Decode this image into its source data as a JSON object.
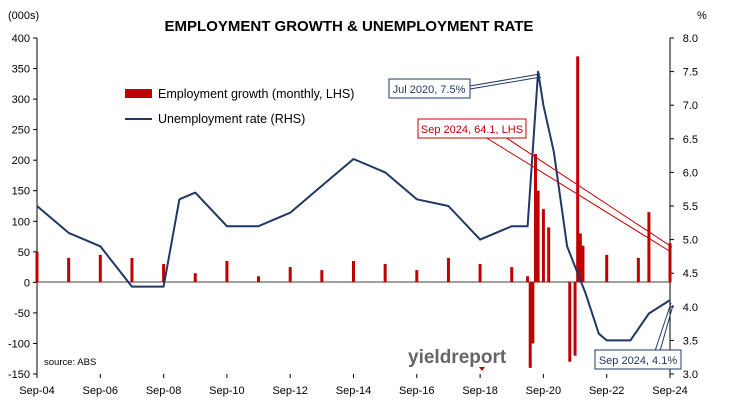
{
  "chart_data": {
    "type": "bar+line",
    "title": "EMPLOYMENT GROWTH & UNEMPLOYMENT RATE",
    "ylabel_left": "(000s)",
    "ylabel_right": "%",
    "ylim_left": [
      -150,
      400
    ],
    "ylim_right": [
      3.0,
      8.0
    ],
    "yticks_left": [
      "400",
      "350",
      "300",
      "250",
      "200",
      "150",
      "100",
      "50",
      "0",
      "-50",
      "-100",
      "-150"
    ],
    "yticks_right": [
      "8.0",
      "7.5",
      "7.0",
      "6.5",
      "6.0",
      "5.5",
      "5.0",
      "4.5",
      "4.0",
      "3.5",
      "3.0"
    ],
    "xticks": [
      "Sep-04",
      "Sep-06",
      "Sep-08",
      "Sep-10",
      "Sep-12",
      "Sep-14",
      "Sep-16",
      "Sep-18",
      "Sep-20",
      "Sep-22",
      "Sep-24"
    ],
    "x_range": [
      "Sep-04",
      "Sep-24"
    ],
    "grid": false,
    "legend_position": "top-left",
    "colors": {
      "bars": "#c00000",
      "line": "#1f3864",
      "annot_red": "#c00000",
      "annot_navy": "#1f3864"
    },
    "series": [
      {
        "name": "Employment growth (monthly, LHS)",
        "type": "bar",
        "axis": "left",
        "x": [
          "Sep-04",
          "Sep-05",
          "Sep-06",
          "Sep-07",
          "Sep-08",
          "Sep-09",
          "Sep-10",
          "Sep-11",
          "Sep-12",
          "Sep-13",
          "Sep-14",
          "Sep-15",
          "Sep-16",
          "Sep-17",
          "Sep-18",
          "Sep-19",
          "Mar-20",
          "Apr-20",
          "May-20",
          "Jun-20",
          "Jul-20",
          "Sep-20",
          "Nov-20",
          "Jul-21",
          "Sep-21",
          "Oct-21",
          "Nov-21",
          "Dec-21",
          "Sep-22",
          "Sep-23",
          "Jan-24",
          "Sep-24"
        ],
        "values": [
          50,
          40,
          45,
          40,
          30,
          15,
          35,
          10,
          25,
          20,
          35,
          30,
          20,
          40,
          30,
          25,
          10,
          -140,
          -100,
          210,
          150,
          120,
          90,
          -130,
          -120,
          370,
          80,
          60,
          45,
          40,
          115,
          64.1
        ]
      },
      {
        "name": "Unemployment rate (RHS)",
        "type": "line",
        "axis": "right",
        "x": [
          "Sep-04",
          "Sep-05",
          "Sep-06",
          "Sep-07",
          "Sep-08",
          "Mar-09",
          "Sep-09",
          "Sep-10",
          "Sep-11",
          "Sep-12",
          "Sep-13",
          "Sep-14",
          "Sep-15",
          "Sep-16",
          "Sep-17",
          "Sep-18",
          "Sep-19",
          "Mar-20",
          "Jul-20",
          "Sep-20",
          "Jan-21",
          "Jun-21",
          "Sep-21",
          "Jan-22",
          "Jun-22",
          "Sep-22",
          "Jun-23",
          "Jan-24",
          "Sep-24"
        ],
        "values": [
          5.5,
          5.1,
          4.9,
          4.3,
          4.3,
          5.6,
          5.7,
          5.2,
          5.2,
          5.4,
          5.8,
          6.2,
          6.0,
          5.6,
          5.5,
          5.0,
          5.2,
          5.2,
          7.5,
          7.0,
          6.3,
          4.9,
          4.6,
          4.2,
          3.6,
          3.5,
          3.5,
          3.9,
          4.1
        ]
      }
    ],
    "annotations": [
      {
        "text": "Jul 2020, 7.5%",
        "color": "navy"
      },
      {
        "text": "Sep 2024, 64.1, LHS",
        "color": "red"
      },
      {
        "text": "Sep 2024, 4.1%",
        "color": "navy"
      }
    ],
    "source": "source: ABS",
    "logo": "yieldreport"
  }
}
